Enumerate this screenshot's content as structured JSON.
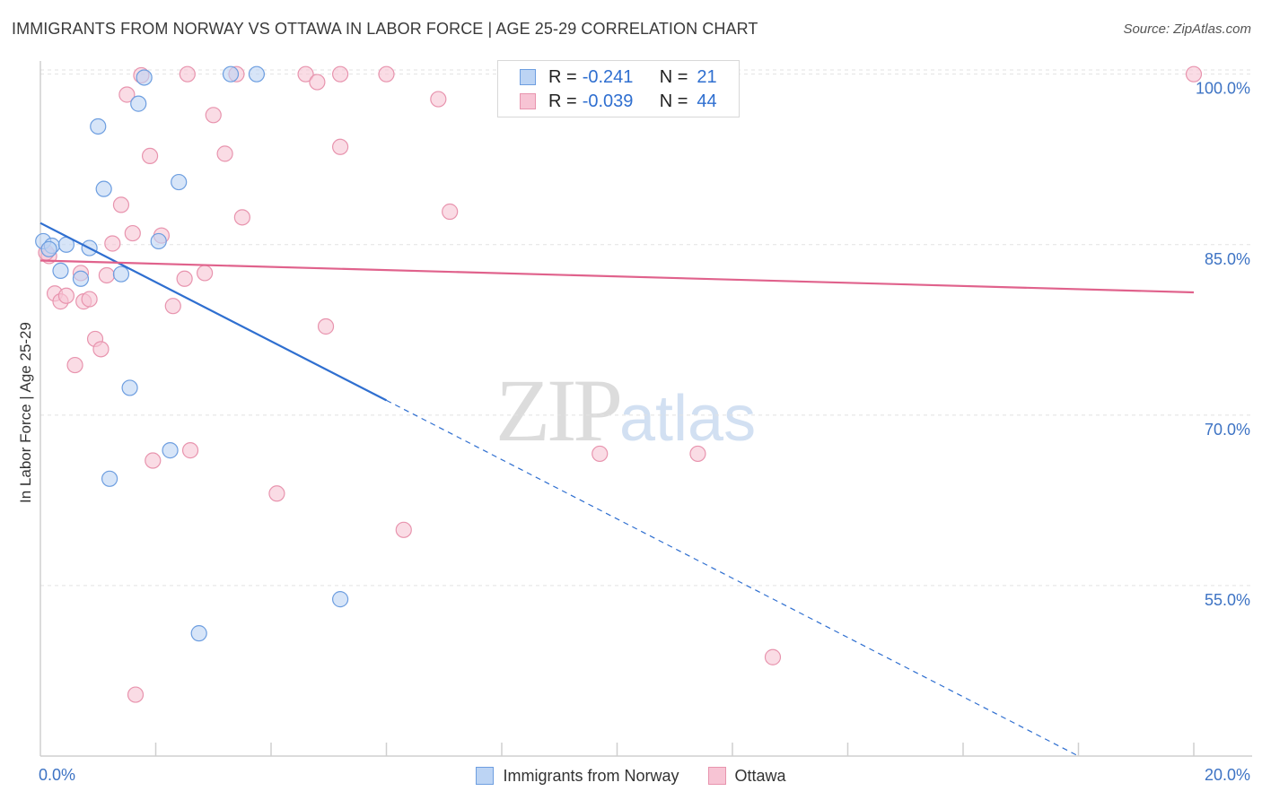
{
  "header": {
    "title": "IMMIGRANTS FROM NORWAY VS OTTAWA IN LABOR FORCE | AGE 25-29 CORRELATION CHART",
    "source": "Source: ZipAtlas.com"
  },
  "watermark": {
    "zip": "ZIP",
    "atlas": "atlas"
  },
  "colors": {
    "norway_fill": "#bcd4f4",
    "norway_stroke": "#6d9ee0",
    "norway_line": "#2f6fd0",
    "ottawa_fill": "#f7c4d4",
    "ottawa_stroke": "#e894ae",
    "ottawa_line": "#e0628c",
    "tick_label": "#3d73c4",
    "grid": "#e2e2e2"
  },
  "legend_top": [
    {
      "r_label": "R =",
      "r_value": "-0.241",
      "n_label": "N =",
      "n_value": "21"
    },
    {
      "r_label": "R =",
      "r_value": "-0.039",
      "n_label": "N =",
      "n_value": "44"
    }
  ],
  "chart_data": {
    "type": "scatter",
    "title": "IMMIGRANTS FROM NORWAY VS OTTAWA IN LABOR FORCE | AGE 25-29 CORRELATION CHART",
    "xlabel": "",
    "ylabel": "In Labor Force | Age 25-29",
    "xlim": [
      0,
      20
    ],
    "ylim": [
      40,
      101
    ],
    "x_tick_labels": [
      "0.0%",
      "20.0%"
    ],
    "y_ticks": [
      55,
      70,
      85,
      100
    ],
    "y_tick_labels": [
      "55.0%",
      "70.0%",
      "85.0%",
      "100.0%"
    ],
    "series": [
      {
        "name": "Immigrants from Norway",
        "points": [
          [
            0.05,
            85.3
          ],
          [
            0.2,
            84.9
          ],
          [
            0.35,
            82.7
          ],
          [
            0.45,
            85.0
          ],
          [
            0.7,
            82.0
          ],
          [
            0.85,
            84.7
          ],
          [
            1.0,
            95.4
          ],
          [
            1.1,
            89.9
          ],
          [
            1.2,
            64.4
          ],
          [
            1.4,
            82.4
          ],
          [
            1.55,
            72.4
          ],
          [
            1.7,
            97.4
          ],
          [
            1.8,
            99.7
          ],
          [
            2.05,
            85.3
          ],
          [
            2.4,
            90.5
          ],
          [
            2.25,
            66.9
          ],
          [
            2.75,
            50.8
          ],
          [
            3.3,
            100.0
          ],
          [
            3.75,
            100.0
          ],
          [
            5.2,
            53.8
          ],
          [
            0.15,
            84.6
          ]
        ],
        "trend": {
          "x0": 0,
          "y0": 86.9,
          "x1": 6.0,
          "y1": 71.3,
          "dashed_to_x": 18.0,
          "dashed_to_y": 40.0
        }
      },
      {
        "name": "Ottawa",
        "points": [
          [
            0.15,
            84.0
          ],
          [
            0.25,
            80.7
          ],
          [
            0.35,
            80.0
          ],
          [
            0.45,
            80.5
          ],
          [
            0.6,
            74.4
          ],
          [
            0.7,
            82.5
          ],
          [
            0.75,
            80.0
          ],
          [
            0.85,
            80.2
          ],
          [
            0.95,
            76.7
          ],
          [
            1.05,
            75.8
          ],
          [
            1.15,
            82.3
          ],
          [
            1.25,
            85.1
          ],
          [
            1.4,
            88.5
          ],
          [
            1.5,
            98.2
          ],
          [
            1.6,
            86.0
          ],
          [
            1.65,
            45.4
          ],
          [
            1.75,
            99.9
          ],
          [
            1.9,
            92.8
          ],
          [
            1.95,
            66.0
          ],
          [
            2.1,
            85.8
          ],
          [
            2.3,
            79.6
          ],
          [
            2.5,
            82.0
          ],
          [
            2.6,
            66.9
          ],
          [
            2.85,
            82.5
          ],
          [
            2.55,
            100.0
          ],
          [
            3.0,
            96.4
          ],
          [
            3.2,
            93.0
          ],
          [
            3.4,
            100.0
          ],
          [
            3.5,
            87.4
          ],
          [
            4.1,
            63.1
          ],
          [
            4.6,
            100.0
          ],
          [
            4.8,
            99.3
          ],
          [
            4.95,
            77.8
          ],
          [
            5.2,
            93.6
          ],
          [
            5.2,
            100.0
          ],
          [
            6.0,
            100.0
          ],
          [
            6.3,
            59.9
          ],
          [
            6.9,
            97.8
          ],
          [
            7.1,
            87.9
          ],
          [
            9.7,
            66.6
          ],
          [
            11.4,
            66.6
          ],
          [
            12.7,
            48.7
          ],
          [
            20.0,
            100.0
          ],
          [
            0.1,
            84.3
          ]
        ],
        "trend": {
          "x0": 0,
          "y0": 83.6,
          "x1": 20.0,
          "y1": 80.8
        }
      }
    ]
  },
  "legend_bottom": [
    {
      "label": "Immigrants from Norway"
    },
    {
      "label": "Ottawa"
    }
  ]
}
